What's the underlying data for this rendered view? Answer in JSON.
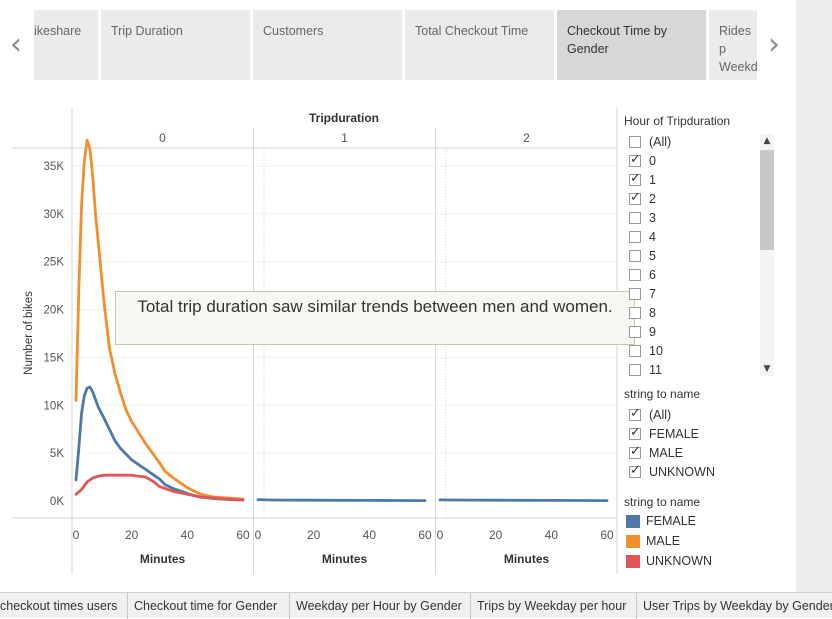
{
  "story": {
    "tabs": [
      {
        "label": "ikeshare"
      },
      {
        "label": "Trip Duration"
      },
      {
        "label": "Customers"
      },
      {
        "label": "Total Checkout Time"
      },
      {
        "label": "Checkout Time by Gender",
        "active": true
      },
      {
        "label": "Rides p Weekd"
      }
    ],
    "prev_icon": "chevron-left-icon",
    "next_icon": "chevron-right-icon"
  },
  "bottom_tabs": [
    {
      "label": "checkout times users"
    },
    {
      "label": "Checkout time for Gender"
    },
    {
      "label": "Weekday per Hour by Gender"
    },
    {
      "label": "Trips by Weekday per hour"
    },
    {
      "label": "User Trips by Weekday by Gender"
    }
  ],
  "filters": {
    "hour": {
      "title": "Hour of Tripduration",
      "items": [
        {
          "label": "(All)",
          "checked": false
        },
        {
          "label": "0",
          "checked": true
        },
        {
          "label": "1",
          "checked": true
        },
        {
          "label": "2",
          "checked": true
        },
        {
          "label": "3",
          "checked": false
        },
        {
          "label": "4",
          "checked": false
        },
        {
          "label": "5",
          "checked": false
        },
        {
          "label": "6",
          "checked": false
        },
        {
          "label": "7",
          "checked": false
        },
        {
          "label": "8",
          "checked": false
        },
        {
          "label": "9",
          "checked": false
        },
        {
          "label": "10",
          "checked": false
        },
        {
          "label": "11",
          "checked": false
        }
      ]
    },
    "gender": {
      "title": "string to name",
      "items": [
        {
          "label": "(All)",
          "checked": true
        },
        {
          "label": "FEMALE",
          "checked": true
        },
        {
          "label": "MALE",
          "checked": true
        },
        {
          "label": "UNKNOWN",
          "checked": true
        }
      ]
    }
  },
  "legend": {
    "title": "string to name",
    "items": [
      {
        "label": "FEMALE",
        "color": "#4e79a7"
      },
      {
        "label": "MALE",
        "color": "#f28e2b"
      },
      {
        "label": "UNKNOWN",
        "color": "#e15759"
      }
    ]
  },
  "annotation": "Total trip duration saw similar trends between men and women.",
  "chart_data": {
    "type": "line",
    "title": "Tripduration",
    "panels": [
      "0",
      "1",
      "2"
    ],
    "xlabel": "Minutes",
    "ylabel": "Number of bikes",
    "xlim": [
      0,
      60
    ],
    "ylim": [
      0,
      38000
    ],
    "x_ticks": [
      "0",
      "20",
      "40",
      "60"
    ],
    "y_ticks": [
      {
        "value": 0,
        "label": "0K"
      },
      {
        "value": 5000,
        "label": "5K"
      },
      {
        "value": 10000,
        "label": "10K"
      },
      {
        "value": 15000,
        "label": "15K"
      },
      {
        "value": 20000,
        "label": "20K"
      },
      {
        "value": 25000,
        "label": "25K"
      },
      {
        "value": 30000,
        "label": "30K"
      },
      {
        "value": 35000,
        "label": "35K"
      }
    ],
    "series": [
      {
        "name": "MALE",
        "color": "#f28e2b",
        "panel": "0",
        "x": [
          0,
          1,
          2,
          3,
          4,
          5,
          6,
          7,
          8,
          10,
          12,
          14,
          16,
          18,
          20,
          22,
          25,
          28,
          30,
          32,
          35,
          38,
          40,
          42,
          45,
          48,
          50,
          55,
          60
        ],
        "y": [
          10500,
          22000,
          31000,
          35500,
          37700,
          36800,
          34000,
          30000,
          27000,
          21000,
          16000,
          13300,
          11300,
          9500,
          8300,
          7400,
          6000,
          4800,
          4000,
          3100,
          2400,
          1800,
          1400,
          1100,
          700,
          500,
          400,
          300,
          200
        ]
      },
      {
        "name": "FEMALE",
        "color": "#4e79a7",
        "panel": "0",
        "x": [
          0,
          1,
          2,
          3,
          4,
          5,
          6,
          7,
          8,
          10,
          12,
          14,
          16,
          18,
          20,
          22,
          25,
          28,
          30,
          32,
          35,
          38,
          40,
          42,
          45,
          48,
          50,
          55,
          60
        ],
        "y": [
          2200,
          5500,
          9200,
          11000,
          11800,
          11900,
          11400,
          10600,
          9800,
          8700,
          7500,
          6300,
          5500,
          4900,
          4300,
          3900,
          3300,
          2700,
          2300,
          1700,
          1300,
          1000,
          800,
          600,
          400,
          300,
          250,
          150,
          100
        ]
      },
      {
        "name": "UNKNOWN",
        "color": "#e15759",
        "panel": "0",
        "x": [
          0,
          2,
          4,
          6,
          8,
          10,
          15,
          20,
          25,
          28,
          30,
          35,
          40,
          45,
          50,
          55,
          60
        ],
        "y": [
          700,
          1200,
          2000,
          2400,
          2600,
          2700,
          2700,
          2700,
          2500,
          2000,
          1500,
          1000,
          700,
          400,
          300,
          200,
          100
        ]
      },
      {
        "name": "FEMALE",
        "color": "#4e79a7",
        "panel": "1",
        "x": [
          0,
          5,
          10,
          20,
          30,
          40,
          50,
          60
        ],
        "y": [
          150,
          100,
          90,
          80,
          70,
          60,
          50,
          40
        ]
      },
      {
        "name": "FEMALE",
        "color": "#4e79a7",
        "panel": "2",
        "x": [
          0,
          5,
          10,
          20,
          30,
          40,
          50,
          60
        ],
        "y": [
          120,
          100,
          90,
          80,
          70,
          60,
          50,
          40
        ]
      }
    ]
  }
}
